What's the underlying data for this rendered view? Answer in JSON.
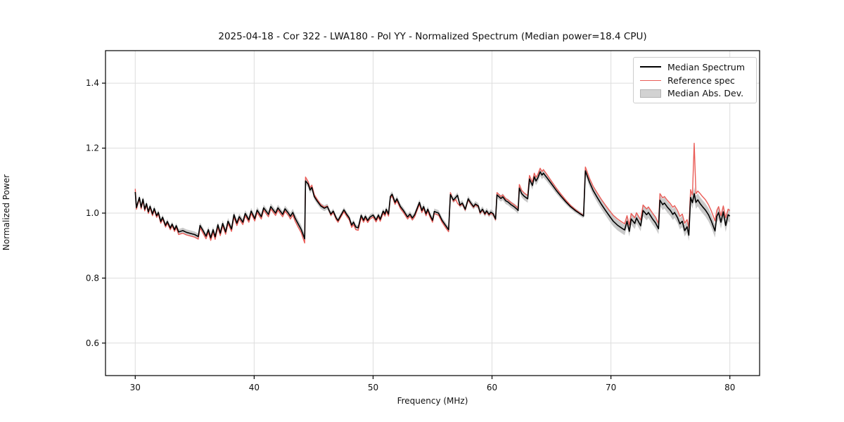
{
  "chart_data": {
    "type": "line",
    "title": "2025-04-18 - Cor 322 - LWA180 - Pol YY - Normalized Spectrum (Median power=18.4 CPU)",
    "xlabel": "Frequency (MHz)",
    "ylabel": "Normalized Power",
    "xlim": [
      27.5,
      82.5
    ],
    "ylim": [
      0.5,
      1.5
    ],
    "grid": true,
    "x_ticks": [
      {
        "v": 30,
        "label": "30"
      },
      {
        "v": 40,
        "label": "40"
      },
      {
        "v": 50,
        "label": "50"
      },
      {
        "v": 60,
        "label": "60"
      },
      {
        "v": 70,
        "label": "70"
      },
      {
        "v": 80,
        "label": "80"
      }
    ],
    "y_ticks": [
      {
        "v": 0.6,
        "label": "0.6"
      },
      {
        "v": 0.8,
        "label": "0.8"
      },
      {
        "v": 1.0,
        "label": "1.0"
      },
      {
        "v": 1.2,
        "label": "1.2"
      },
      {
        "v": 1.4,
        "label": "1.4"
      }
    ],
    "legend": [
      {
        "label": "Median Spectrum",
        "color": "#000000",
        "kind": "line"
      },
      {
        "label": "Reference spec",
        "color": "#ea5d58",
        "kind": "line"
      },
      {
        "label": "Median Abs. Dev.",
        "color": "#d2d2d2",
        "kind": "patch"
      }
    ],
    "legend_position": "upper right",
    "colors": {
      "median": "#000000",
      "reference": "#ea5d58",
      "band": "#c9c9c9",
      "grid": "#dddddd",
      "spine": "#000000"
    },
    "series_note": "points are [freq_MHz, median_power, reference_power, median_abs_dev]",
    "points": [
      [
        30.0,
        1.065,
        1.075,
        0.008
      ],
      [
        30.1,
        1.017,
        1.012,
        0.008
      ],
      [
        30.2,
        1.03,
        1.026,
        0.008
      ],
      [
        30.35,
        1.048,
        1.044,
        0.008
      ],
      [
        30.5,
        1.018,
        1.013,
        0.008
      ],
      [
        30.65,
        1.043,
        1.038,
        0.008
      ],
      [
        30.8,
        1.012,
        1.007,
        0.008
      ],
      [
        30.95,
        1.029,
        1.024,
        0.008
      ],
      [
        31.1,
        1.004,
        0.999,
        0.008
      ],
      [
        31.25,
        1.021,
        1.016,
        0.008
      ],
      [
        31.45,
        0.997,
        0.992,
        0.008
      ],
      [
        31.6,
        1.014,
        1.009,
        0.008
      ],
      [
        31.8,
        0.992,
        0.987,
        0.008
      ],
      [
        31.95,
        1.002,
        0.997,
        0.008
      ],
      [
        32.15,
        0.974,
        0.969,
        0.008
      ],
      [
        32.3,
        0.987,
        0.982,
        0.008
      ],
      [
        32.55,
        0.962,
        0.957,
        0.008
      ],
      [
        32.7,
        0.974,
        0.969,
        0.008
      ],
      [
        32.95,
        0.954,
        0.949,
        0.008
      ],
      [
        33.1,
        0.966,
        0.961,
        0.008
      ],
      [
        33.3,
        0.949,
        0.944,
        0.008
      ],
      [
        33.45,
        0.961,
        0.955,
        0.008
      ],
      [
        33.65,
        0.942,
        0.934,
        0.009
      ],
      [
        34.0,
        0.946,
        0.938,
        0.009
      ],
      [
        34.3,
        0.941,
        0.933,
        0.009
      ],
      [
        34.7,
        0.937,
        0.929,
        0.009
      ],
      [
        35.0,
        0.934,
        0.926,
        0.009
      ],
      [
        35.3,
        0.928,
        0.92,
        0.009
      ],
      [
        35.45,
        0.962,
        0.955,
        0.009
      ],
      [
        35.7,
        0.946,
        0.938,
        0.009
      ],
      [
        35.95,
        0.929,
        0.921,
        0.009
      ],
      [
        36.15,
        0.949,
        0.941,
        0.009
      ],
      [
        36.35,
        0.924,
        0.916,
        0.009
      ],
      [
        36.55,
        0.949,
        0.941,
        0.009
      ],
      [
        36.72,
        0.927,
        0.919,
        0.009
      ],
      [
        36.95,
        0.964,
        0.956,
        0.009
      ],
      [
        37.15,
        0.938,
        0.931,
        0.01
      ],
      [
        37.35,
        0.968,
        0.961,
        0.01
      ],
      [
        37.6,
        0.942,
        0.935,
        0.01
      ],
      [
        37.8,
        0.975,
        0.968,
        0.01
      ],
      [
        38.1,
        0.951,
        0.944,
        0.01
      ],
      [
        38.3,
        0.995,
        0.988,
        0.01
      ],
      [
        38.55,
        0.969,
        0.962,
        0.01
      ],
      [
        38.75,
        0.989,
        0.982,
        0.01
      ],
      [
        39.05,
        0.972,
        0.965,
        0.01
      ],
      [
        39.25,
        0.999,
        0.992,
        0.01
      ],
      [
        39.55,
        0.979,
        0.972,
        0.01
      ],
      [
        39.75,
        1.006,
        0.999,
        0.01
      ],
      [
        40.05,
        0.983,
        0.976,
        0.01
      ],
      [
        40.25,
        1.009,
        1.002,
        0.01
      ],
      [
        40.6,
        0.989,
        0.982,
        0.01
      ],
      [
        40.8,
        1.016,
        1.009,
        0.01
      ],
      [
        41.2,
        0.996,
        0.989,
        0.01
      ],
      [
        41.4,
        1.02,
        1.013,
        0.01
      ],
      [
        41.8,
        1.0,
        0.993,
        0.01
      ],
      [
        42.0,
        1.016,
        1.009,
        0.01
      ],
      [
        42.4,
        0.996,
        0.989,
        0.01
      ],
      [
        42.6,
        1.013,
        1.006,
        0.01
      ],
      [
        42.9,
        0.999,
        0.992,
        0.01
      ],
      [
        43.05,
        0.99,
        0.982,
        0.011
      ],
      [
        43.25,
        1.002,
        0.994,
        0.011
      ],
      [
        43.45,
        0.984,
        0.975,
        0.012
      ],
      [
        43.7,
        0.967,
        0.957,
        0.012
      ],
      [
        43.95,
        0.95,
        0.94,
        0.013
      ],
      [
        44.25,
        0.921,
        0.908,
        0.013
      ],
      [
        44.32,
        1.099,
        1.111,
        0.01
      ],
      [
        44.55,
        1.089,
        1.096,
        0.01
      ],
      [
        44.7,
        1.071,
        1.078,
        0.01
      ],
      [
        44.85,
        1.079,
        1.086,
        0.01
      ],
      [
        45.05,
        1.051,
        1.057,
        0.009
      ],
      [
        45.3,
        1.037,
        1.042,
        0.009
      ],
      [
        45.6,
        1.022,
        1.026,
        0.009
      ],
      [
        45.9,
        1.015,
        1.018,
        0.009
      ],
      [
        46.15,
        1.02,
        1.022,
        0.009
      ],
      [
        46.45,
        0.997,
        0.993,
        0.008
      ],
      [
        46.65,
        1.006,
        1.002,
        0.008
      ],
      [
        46.9,
        0.985,
        0.98,
        0.008
      ],
      [
        47.05,
        0.977,
        0.972,
        0.008
      ],
      [
        47.2,
        0.987,
        0.982,
        0.008
      ],
      [
        47.55,
        1.01,
        1.004,
        0.008
      ],
      [
        47.8,
        0.995,
        0.989,
        0.008
      ],
      [
        48.0,
        0.985,
        0.979,
        0.008
      ],
      [
        48.2,
        0.963,
        0.956,
        0.008
      ],
      [
        48.35,
        0.972,
        0.965,
        0.008
      ],
      [
        48.55,
        0.957,
        0.949,
        0.008
      ],
      [
        48.75,
        0.955,
        0.947,
        0.008
      ],
      [
        49.0,
        0.993,
        0.987,
        0.008
      ],
      [
        49.2,
        0.978,
        0.972,
        0.008
      ],
      [
        49.35,
        0.99,
        0.984,
        0.008
      ],
      [
        49.55,
        0.977,
        0.971,
        0.008
      ],
      [
        49.75,
        0.988,
        0.982,
        0.008
      ],
      [
        50.0,
        0.994,
        0.988,
        0.008
      ],
      [
        50.25,
        0.979,
        0.973,
        0.008
      ],
      [
        50.45,
        0.994,
        0.988,
        0.008
      ],
      [
        50.6,
        0.981,
        0.975,
        0.008
      ],
      [
        50.85,
        1.006,
        1.0,
        0.008
      ],
      [
        51.0,
        0.997,
        0.991,
        0.008
      ],
      [
        51.1,
        1.012,
        1.006,
        0.008
      ],
      [
        51.3,
        0.997,
        0.991,
        0.008
      ],
      [
        51.45,
        1.051,
        1.046,
        0.009
      ],
      [
        51.6,
        1.058,
        1.053,
        0.009
      ],
      [
        51.85,
        1.033,
        1.027,
        0.009
      ],
      [
        52.0,
        1.044,
        1.038,
        0.009
      ],
      [
        52.3,
        1.02,
        1.014,
        0.009
      ],
      [
        52.55,
        1.008,
        1.002,
        0.009
      ],
      [
        52.9,
        0.988,
        0.982,
        0.009
      ],
      [
        53.1,
        0.997,
        0.991,
        0.009
      ],
      [
        53.3,
        0.985,
        0.979,
        0.009
      ],
      [
        53.5,
        0.995,
        0.989,
        0.009
      ],
      [
        53.9,
        1.033,
        1.027,
        0.009
      ],
      [
        54.1,
        1.008,
        1.002,
        0.009
      ],
      [
        54.25,
        1.02,
        1.014,
        0.009
      ],
      [
        54.45,
        0.998,
        0.992,
        0.009
      ],
      [
        54.6,
        1.012,
        1.006,
        0.009
      ],
      [
        54.8,
        0.993,
        0.987,
        0.009
      ],
      [
        55.0,
        0.978,
        0.972,
        0.009
      ],
      [
        55.15,
        1.005,
        0.999,
        0.009
      ],
      [
        55.5,
        1.0,
        0.994,
        0.009
      ],
      [
        55.8,
        0.978,
        0.972,
        0.009
      ],
      [
        56.1,
        0.962,
        0.955,
        0.009
      ],
      [
        56.35,
        0.949,
        0.943,
        0.009
      ],
      [
        56.5,
        1.057,
        1.063,
        0.009
      ],
      [
        56.75,
        1.04,
        1.036,
        0.009
      ],
      [
        56.95,
        1.048,
        1.042,
        0.009
      ],
      [
        57.1,
        1.055,
        1.03,
        0.009
      ],
      [
        57.3,
        1.025,
        1.022,
        0.009
      ],
      [
        57.5,
        1.031,
        1.028,
        0.009
      ],
      [
        57.75,
        1.012,
        1.009,
        0.009
      ],
      [
        58.0,
        1.044,
        1.041,
        0.009
      ],
      [
        58.2,
        1.032,
        1.029,
        0.009
      ],
      [
        58.45,
        1.02,
        1.017,
        0.009
      ],
      [
        58.6,
        1.028,
        1.025,
        0.009
      ],
      [
        58.85,
        1.022,
        1.019,
        0.009
      ],
      [
        59.0,
        1.002,
        0.999,
        0.009
      ],
      [
        59.2,
        1.012,
        1.009,
        0.009
      ],
      [
        59.4,
        0.998,
        0.995,
        0.009
      ],
      [
        59.55,
        1.007,
        1.004,
        0.009
      ],
      [
        59.75,
        0.996,
        0.993,
        0.009
      ],
      [
        59.9,
        1.003,
        1.0,
        0.009
      ],
      [
        60.1,
        0.998,
        0.995,
        0.009
      ],
      [
        60.3,
        0.982,
        0.979,
        0.009
      ],
      [
        60.42,
        1.056,
        1.063,
        0.01
      ],
      [
        60.75,
        1.045,
        1.051,
        0.01
      ],
      [
        60.9,
        1.05,
        1.056,
        0.01
      ],
      [
        61.15,
        1.038,
        1.044,
        0.01
      ],
      [
        61.35,
        1.034,
        1.04,
        0.01
      ],
      [
        61.6,
        1.026,
        1.032,
        0.01
      ],
      [
        61.85,
        1.02,
        1.026,
        0.01
      ],
      [
        62.1,
        1.012,
        1.018,
        0.011
      ],
      [
        62.2,
        1.008,
        1.014,
        0.011
      ],
      [
        62.3,
        1.077,
        1.088,
        0.012
      ],
      [
        62.5,
        1.06,
        1.07,
        0.012
      ],
      [
        62.7,
        1.052,
        1.062,
        0.012
      ],
      [
        63.0,
        1.044,
        1.054,
        0.012
      ],
      [
        63.15,
        1.105,
        1.116,
        0.013
      ],
      [
        63.4,
        1.085,
        1.095,
        0.013
      ],
      [
        63.55,
        1.112,
        1.123,
        0.013
      ],
      [
        63.7,
        1.099,
        1.11,
        0.013
      ],
      [
        63.85,
        1.108,
        1.119,
        0.013
      ],
      [
        64.05,
        1.127,
        1.138,
        0.013
      ],
      [
        64.2,
        1.117,
        1.128,
        0.013
      ],
      [
        64.32,
        1.123,
        1.134,
        0.013
      ],
      [
        64.6,
        1.11,
        1.12,
        0.012
      ],
      [
        65.0,
        1.09,
        1.098,
        0.011
      ],
      [
        65.4,
        1.07,
        1.077,
        0.01
      ],
      [
        65.8,
        1.052,
        1.058,
        0.009
      ],
      [
        66.2,
        1.035,
        1.04,
        0.008
      ],
      [
        66.6,
        1.02,
        1.024,
        0.007
      ],
      [
        67.0,
        1.008,
        1.011,
        0.007
      ],
      [
        67.4,
        0.998,
        1.0,
        0.007
      ],
      [
        67.7,
        0.991,
        0.993,
        0.007
      ],
      [
        67.85,
        1.13,
        1.142,
        0.013
      ],
      [
        68.2,
        1.095,
        1.107,
        0.014
      ],
      [
        68.5,
        1.07,
        1.083,
        0.014
      ],
      [
        68.85,
        1.048,
        1.062,
        0.015
      ],
      [
        69.2,
        1.027,
        1.042,
        0.015
      ],
      [
        69.55,
        1.008,
        1.024,
        0.015
      ],
      [
        69.9,
        0.99,
        1.007,
        0.016
      ],
      [
        70.2,
        0.975,
        0.993,
        0.016
      ],
      [
        70.55,
        0.963,
        0.982,
        0.016
      ],
      [
        70.9,
        0.954,
        0.973,
        0.016
      ],
      [
        71.15,
        0.948,
        0.967,
        0.016
      ],
      [
        71.35,
        0.975,
        0.992,
        0.016
      ],
      [
        71.55,
        0.944,
        0.963,
        0.016
      ],
      [
        71.7,
        0.982,
        0.999,
        0.017
      ],
      [
        72.0,
        0.968,
        0.986,
        0.017
      ],
      [
        72.15,
        0.985,
        1.001,
        0.017
      ],
      [
        72.5,
        0.961,
        0.979,
        0.017
      ],
      [
        72.7,
        1.008,
        1.025,
        0.017
      ],
      [
        73.0,
        0.995,
        1.013,
        0.017
      ],
      [
        73.15,
        1.002,
        1.019,
        0.017
      ],
      [
        73.5,
        0.982,
        1.0,
        0.017
      ],
      [
        73.75,
        0.97,
        0.988,
        0.017
      ],
      [
        74.0,
        0.952,
        0.968,
        0.017
      ],
      [
        74.12,
        1.04,
        1.06,
        0.017
      ],
      [
        74.35,
        1.026,
        1.047,
        0.017
      ],
      [
        74.5,
        1.031,
        1.051,
        0.017
      ],
      [
        74.75,
        1.018,
        1.039,
        0.017
      ],
      [
        75.0,
        1.008,
        1.029,
        0.017
      ],
      [
        75.2,
        0.996,
        1.018,
        0.017
      ],
      [
        75.35,
        1.002,
        1.023,
        0.017
      ],
      [
        75.6,
        0.986,
        1.008,
        0.017
      ],
      [
        75.8,
        0.967,
        0.99,
        0.017
      ],
      [
        76.0,
        0.975,
        0.997,
        0.018
      ],
      [
        76.2,
        0.946,
        0.969,
        0.018
      ],
      [
        76.4,
        0.958,
        0.98,
        0.018
      ],
      [
        76.55,
        0.932,
        0.955,
        0.018
      ],
      [
        76.7,
        1.048,
        1.072,
        0.018
      ],
      [
        76.85,
        1.032,
        1.056,
        0.018
      ],
      [
        77.0,
        1.06,
        1.215,
        0.02
      ],
      [
        77.15,
        1.033,
        1.06,
        0.02
      ],
      [
        77.3,
        1.041,
        1.068,
        0.02
      ],
      [
        77.5,
        1.029,
        1.06,
        0.02
      ],
      [
        77.7,
        1.02,
        1.051,
        0.02
      ],
      [
        77.95,
        1.009,
        1.041,
        0.02
      ],
      [
        78.2,
        0.995,
        1.026,
        0.02
      ],
      [
        78.45,
        0.975,
        1.006,
        0.02
      ],
      [
        78.75,
        0.945,
        0.976,
        0.02
      ],
      [
        78.9,
        0.99,
        1.008,
        0.02
      ],
      [
        79.05,
        1.002,
        1.02,
        0.02
      ],
      [
        79.25,
        0.972,
        0.992,
        0.02
      ],
      [
        79.45,
        1.004,
        1.022,
        0.02
      ],
      [
        79.65,
        0.962,
        0.986,
        0.02
      ],
      [
        79.85,
        0.995,
        1.012,
        0.02
      ],
      [
        80.0,
        0.991,
        1.008,
        0.02
      ]
    ]
  }
}
